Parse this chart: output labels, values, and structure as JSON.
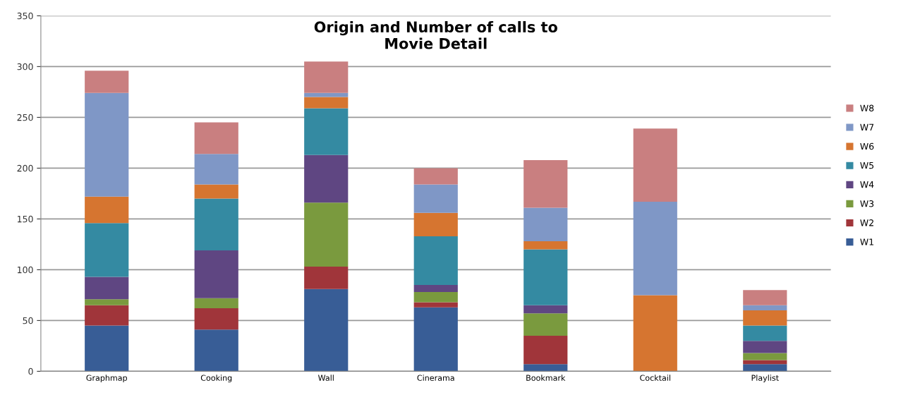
{
  "chart_data": {
    "type": "bar",
    "title": "Origin and Number of calls to\nMovie Detail",
    "stacked": true,
    "categories": [
      "Graphmap",
      "Cooking",
      "Wall",
      "Cinerama",
      "Bookmark",
      "Cocktail",
      "Playlist"
    ],
    "series": [
      {
        "name": "W1",
        "color": "#385d96",
        "values": [
          45,
          41,
          81,
          63,
          7,
          0,
          7
        ]
      },
      {
        "name": "W2",
        "color": "#a0353a",
        "values": [
          20,
          21,
          22,
          5,
          28,
          0,
          4
        ]
      },
      {
        "name": "W3",
        "color": "#7a9a3e",
        "values": [
          6,
          10,
          63,
          10,
          22,
          0,
          7
        ]
      },
      {
        "name": "W4",
        "color": "#5f4682",
        "values": [
          22,
          47,
          47,
          7,
          8,
          0,
          12
        ]
      },
      {
        "name": "W5",
        "color": "#348aa2",
        "values": [
          53,
          51,
          46,
          48,
          55,
          0,
          15
        ]
      },
      {
        "name": "W6",
        "color": "#d67530",
        "values": [
          26,
          14,
          11,
          23,
          8,
          75,
          15
        ]
      },
      {
        "name": "W7",
        "color": "#7f97c6",
        "values": [
          102,
          30,
          4,
          28,
          33,
          92,
          5
        ]
      },
      {
        "name": "W8",
        "color": "#c97f80",
        "values": [
          22,
          31,
          31,
          16,
          47,
          72,
          15
        ]
      }
    ],
    "ylim": [
      0,
      350
    ],
    "yticks": [
      0,
      50,
      100,
      150,
      200,
      250,
      300,
      350
    ],
    "grid": "y",
    "legend": "right"
  }
}
